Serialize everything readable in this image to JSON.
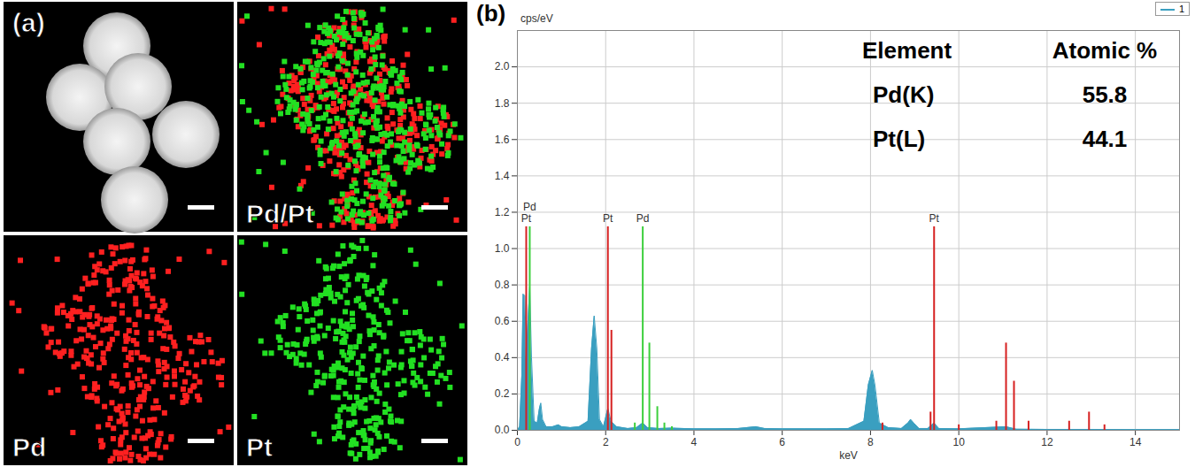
{
  "figure": {
    "panel_a": {
      "label": "(a)",
      "maps": [
        {
          "label": null
        },
        {
          "label": "Pd/Pt",
          "colors": [
            "#ff2020",
            "#22e022"
          ]
        },
        {
          "label": "Pd",
          "color": "#ff2020"
        },
        {
          "label": "Pt",
          "color": "#22e022"
        }
      ]
    }
  },
  "chart_data": {
    "type": "area",
    "panel_label": "(b)",
    "xlabel": "keV",
    "ylabel": "cps/eV",
    "xlim": [
      0,
      15
    ],
    "xticks": [
      0,
      2,
      4,
      6,
      8,
      10,
      12,
      14
    ],
    "ylim": [
      0,
      2.2
    ],
    "yticks": [
      {
        "value": 0,
        "label": "0.0"
      },
      {
        "value": 0.2,
        "label": "0.2"
      },
      {
        "value": 0.4,
        "label": "0.4"
      },
      {
        "value": 0.6,
        "label": "0.6"
      },
      {
        "value": 0.8,
        "label": "0.8"
      },
      {
        "value": 1.0,
        "label": "1.0"
      },
      {
        "value": 1.2,
        "label": "1.2"
      },
      {
        "value": 1.4,
        "label": "1.4"
      },
      {
        "value": 1.6,
        "label": "1.6"
      },
      {
        "value": 1.8,
        "label": "1.8"
      },
      {
        "value": 2.0,
        "label": "2.0"
      }
    ],
    "grid": true,
    "legend": "top-right",
    "series": [
      {
        "name": "1",
        "type": "area",
        "color": "#3a9fc0",
        "x": [
          0,
          0.05,
          0.1,
          0.13,
          0.17,
          0.2,
          0.24,
          0.28,
          0.32,
          0.38,
          0.45,
          0.5,
          0.53,
          0.57,
          0.65,
          0.8,
          0.93,
          1.0,
          1.2,
          1.4,
          1.6,
          1.68,
          1.74,
          1.8,
          1.86,
          1.95,
          2.05,
          2.12,
          2.25,
          2.5,
          2.7,
          2.84,
          2.95,
          3.2,
          3.5,
          4,
          4.5,
          5,
          5.4,
          5.6,
          6,
          6.5,
          7,
          7.5,
          7.85,
          7.95,
          8.04,
          8.1,
          8.2,
          8.4,
          8.7,
          8.85,
          8.91,
          8.98,
          9.1,
          9.3,
          9.44,
          9.55,
          10,
          11.07,
          11.3,
          12,
          13,
          14,
          15
        ],
        "values": [
          0,
          0.02,
          0.3,
          0.75,
          0.74,
          0.4,
          0.6,
          0.79,
          0.4,
          0.05,
          0.04,
          0.12,
          0.15,
          0.06,
          0.02,
          0.02,
          0.03,
          0.02,
          0.015,
          0.02,
          0.05,
          0.45,
          0.63,
          0.45,
          0.06,
          0.02,
          0.12,
          0.05,
          0.02,
          0.01,
          0.015,
          0.04,
          0.015,
          0.01,
          0.012,
          0.008,
          0.008,
          0.01,
          0.02,
          0.01,
          0.008,
          0.008,
          0.008,
          0.01,
          0.05,
          0.25,
          0.33,
          0.25,
          0.04,
          0.015,
          0.01,
          0.04,
          0.06,
          0.04,
          0.01,
          0.01,
          0.04,
          0.01,
          0.008,
          0.02,
          0.006,
          0.005,
          0.005,
          0.004,
          0.004
        ]
      },
      {
        "type": "rule",
        "color": "#d62020",
        "x": [
          0.2,
          2.05,
          2.13,
          8.27,
          9.36,
          9.44,
          10.0,
          10.85,
          11.07,
          11.25,
          11.58,
          12.5,
          12.95,
          13.3
        ],
        "values": [
          1.12,
          1.12,
          0.55,
          0.04,
          0.1,
          1.12,
          0.03,
          0.05,
          0.48,
          0.27,
          0.05,
          0.05,
          0.1,
          0.03
        ],
        "line_labels": [
          "Pt",
          "Pt",
          null,
          null,
          null,
          "Pt",
          null,
          null,
          null,
          null,
          null,
          null,
          null,
          null
        ]
      },
      {
        "type": "rule",
        "color": "#3ccf3c",
        "x": [
          0.28,
          2.66,
          2.84,
          2.99,
          3.17,
          3.33,
          3.5
        ],
        "values": [
          1.12,
          0.04,
          1.12,
          0.48,
          0.13,
          0.04,
          0.02
        ],
        "line_labels": [
          "Pd",
          null,
          "Pd",
          null,
          null,
          null,
          null
        ]
      }
    ],
    "table": {
      "header": [
        "Element",
        "Atomic %"
      ],
      "rows": [
        [
          "Pd(K)",
          55.8
        ],
        [
          "Pt(L)",
          44.1
        ]
      ]
    }
  }
}
